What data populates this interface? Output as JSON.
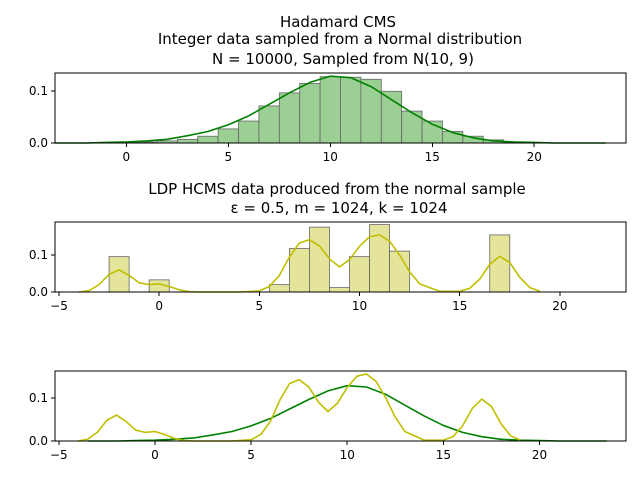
{
  "chart_data": [
    {
      "type": "bar",
      "title_lines": [
        "Hadamard CMS",
        "Integer data sampled from a Normal distribution",
        "N = 10000, Sampled from N(10, 9)"
      ],
      "xlim": [
        -3.5,
        24.5
      ],
      "ylim": [
        0,
        0.134
      ],
      "xticks": [
        0,
        5,
        10,
        15,
        20
      ],
      "yticks": [
        0.0,
        0.1
      ],
      "ytick_labels": [
        "0.0",
        "0.1"
      ],
      "bar_color": "#9bcf94",
      "line_color": "#008000",
      "bars": [
        {
          "x": 0,
          "value": 0.001
        },
        {
          "x": 1,
          "value": 0.002
        },
        {
          "x": 2,
          "value": 0.004
        },
        {
          "x": 3,
          "value": 0.007
        },
        {
          "x": 4,
          "value": 0.013
        },
        {
          "x": 5,
          "value": 0.027
        },
        {
          "x": 6,
          "value": 0.042
        },
        {
          "x": 7,
          "value": 0.071
        },
        {
          "x": 8,
          "value": 0.096
        },
        {
          "x": 9,
          "value": 0.114
        },
        {
          "x": 10,
          "value": 0.127
        },
        {
          "x": 11,
          "value": 0.126
        },
        {
          "x": 12,
          "value": 0.122
        },
        {
          "x": 13,
          "value": 0.099
        },
        {
          "x": 14,
          "value": 0.061
        },
        {
          "x": 15,
          "value": 0.042
        },
        {
          "x": 16,
          "value": 0.022
        },
        {
          "x": 17,
          "value": 0.013
        },
        {
          "x": 18,
          "value": 0.006
        },
        {
          "x": 19,
          "value": 0.002
        }
      ],
      "kde": {
        "x": [
          -3.5,
          -2,
          -1,
          0,
          1,
          2,
          3,
          4,
          5,
          6,
          7,
          8,
          9,
          10,
          11,
          12,
          13,
          14,
          15,
          16,
          17,
          18,
          19,
          20,
          21,
          22,
          23.5
        ],
        "y": [
          0,
          0,
          0.001,
          0.002,
          0.004,
          0.007,
          0.014,
          0.022,
          0.035,
          0.052,
          0.074,
          0.096,
          0.116,
          0.128,
          0.125,
          0.108,
          0.083,
          0.058,
          0.036,
          0.02,
          0.01,
          0.004,
          0.002,
          0.001,
          0,
          0,
          0
        ]
      }
    },
    {
      "type": "bar",
      "title_lines": [
        "LDP HCMS data produced from the normal sample",
        "ε = 0.5, m = 1024, k = 1024"
      ],
      "xlim": [
        -5.2,
        23.3
      ],
      "ylim": [
        0,
        0.19
      ],
      "xticks": [
        -5,
        0,
        5,
        10,
        15,
        20
      ],
      "yticks": [
        0.0,
        0.1
      ],
      "ytick_labels": [
        "0.0",
        "0.1"
      ],
      "bar_color": "#e4e49b",
      "line_color": "#bfbf00",
      "bars": [
        {
          "x": -2,
          "value": 0.096
        },
        {
          "x": 0,
          "value": 0.033
        },
        {
          "x": 6,
          "value": 0.02
        },
        {
          "x": 7,
          "value": 0.118
        },
        {
          "x": 8,
          "value": 0.176
        },
        {
          "x": 9,
          "value": 0.012
        },
        {
          "x": 10,
          "value": 0.096
        },
        {
          "x": 11,
          "value": 0.183
        },
        {
          "x": 12,
          "value": 0.111
        },
        {
          "x": 17,
          "value": 0.155
        }
      ],
      "kde": {
        "x": [
          -4,
          -3.5,
          -3,
          -2.5,
          -2,
          -1.5,
          -1,
          -0.5,
          0,
          0.5,
          1,
          1.5,
          2,
          3,
          4,
          5,
          5.5,
          6,
          6.5,
          7,
          7.5,
          8,
          8.5,
          9,
          9.5,
          10,
          10.5,
          11,
          11.5,
          12,
          12.5,
          13,
          14,
          15,
          15.5,
          16,
          16.5,
          17,
          17.5,
          18,
          18.5,
          19
        ],
        "y": [
          0,
          0.004,
          0.02,
          0.048,
          0.06,
          0.045,
          0.025,
          0.02,
          0.022,
          0.015,
          0.006,
          0.001,
          0,
          0,
          0,
          0.003,
          0.015,
          0.045,
          0.095,
          0.133,
          0.142,
          0.125,
          0.09,
          0.068,
          0.088,
          0.124,
          0.15,
          0.155,
          0.138,
          0.1,
          0.055,
          0.022,
          0.002,
          0.002,
          0.01,
          0.035,
          0.075,
          0.097,
          0.08,
          0.04,
          0.012,
          0.002
        ]
      }
    },
    {
      "type": "line",
      "xlim": [
        -5.2,
        24.5
      ],
      "ylim": [
        0,
        0.162
      ],
      "xticks": [
        -5,
        0,
        5,
        10,
        15,
        20
      ],
      "yticks": [
        0.0,
        0.1
      ],
      "ytick_labels": [
        "0.0",
        "0.1"
      ],
      "series": [
        {
          "color": "#008000",
          "x": [
            -3.5,
            -2,
            -1,
            0,
            1,
            2,
            3,
            4,
            5,
            6,
            7,
            8,
            9,
            10,
            11,
            12,
            13,
            14,
            15,
            16,
            17,
            18,
            19,
            20,
            21,
            22,
            23.5
          ],
          "y": [
            0,
            0,
            0.001,
            0.002,
            0.004,
            0.007,
            0.014,
            0.022,
            0.035,
            0.052,
            0.074,
            0.096,
            0.116,
            0.128,
            0.125,
            0.108,
            0.083,
            0.058,
            0.036,
            0.02,
            0.01,
            0.004,
            0.002,
            0.001,
            0,
            0,
            0
          ]
        },
        {
          "color": "#bfbf00",
          "x": [
            -4,
            -3.5,
            -3,
            -2.5,
            -2,
            -1.5,
            -1,
            -0.5,
            0,
            0.5,
            1,
            1.5,
            2,
            3,
            4,
            5,
            5.5,
            6,
            6.5,
            7,
            7.5,
            8,
            8.5,
            9,
            9.5,
            10,
            10.5,
            11,
            11.5,
            12,
            12.5,
            13,
            14,
            15,
            15.5,
            16,
            16.5,
            17,
            17.5,
            18,
            18.5,
            19
          ],
          "y": [
            0,
            0.004,
            0.02,
            0.048,
            0.06,
            0.045,
            0.025,
            0.02,
            0.022,
            0.015,
            0.006,
            0.001,
            0,
            0,
            0,
            0.003,
            0.015,
            0.045,
            0.095,
            0.133,
            0.142,
            0.125,
            0.09,
            0.068,
            0.088,
            0.124,
            0.15,
            0.155,
            0.138,
            0.1,
            0.055,
            0.022,
            0.002,
            0.002,
            0.01,
            0.035,
            0.075,
            0.097,
            0.08,
            0.04,
            0.012,
            0.002
          ]
        }
      ]
    }
  ]
}
